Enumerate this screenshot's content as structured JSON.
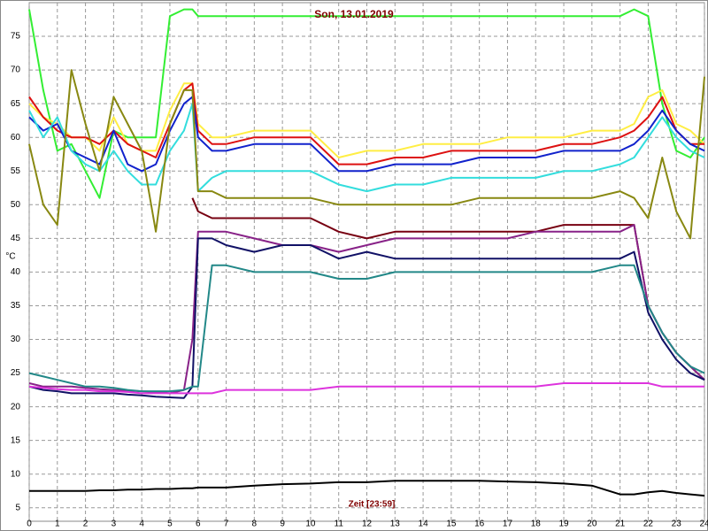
{
  "chart_data": {
    "type": "line",
    "title": "Son, 13.01.2019",
    "y_label": "°C",
    "x_label": "Zeit [23:59]",
    "x": [
      0,
      0.5,
      1,
      1.5,
      2,
      2.5,
      3,
      3.5,
      4,
      4.5,
      5,
      5.5,
      5.8,
      6,
      6.5,
      7,
      8,
      9,
      10,
      11,
      12,
      13,
      14,
      15,
      16,
      17,
      18,
      19,
      20,
      21,
      21.5,
      22,
      22.5,
      23,
      23.5,
      24
    ],
    "xlim": [
      0,
      24
    ],
    "xticks": [
      0,
      1,
      2,
      3,
      4,
      5,
      6,
      7,
      8,
      9,
      10,
      11,
      12,
      13,
      14,
      15,
      16,
      17,
      18,
      19,
      20,
      21,
      22,
      23,
      24
    ],
    "ylim": [
      3,
      80
    ],
    "yticks": [
      5,
      10,
      15,
      20,
      25,
      30,
      35,
      40,
      45,
      50,
      55,
      60,
      65,
      70,
      75
    ],
    "grid": true,
    "series": [
      {
        "color": "#33ee33",
        "values": [
          79,
          67,
          58,
          59,
          55,
          51,
          61,
          60,
          60,
          60,
          78,
          79,
          79,
          78,
          78,
          78,
          78,
          78,
          78,
          78,
          78,
          78,
          78,
          78,
          78,
          78,
          78,
          78,
          78,
          78,
          79,
          78,
          65,
          58,
          57,
          60
        ]
      },
      {
        "color": "#ffee44",
        "values": [
          65,
          63,
          62,
          60,
          60,
          58,
          63,
          59,
          58,
          58,
          64,
          68,
          68,
          62,
          60,
          60,
          61,
          61,
          61,
          57,
          58,
          58,
          59,
          59,
          59,
          60,
          60,
          60,
          61,
          61,
          62,
          66,
          67,
          62,
          61,
          59
        ]
      },
      {
        "color": "#dd1111",
        "values": [
          66,
          63,
          61,
          60,
          60,
          59,
          61,
          59,
          58,
          57,
          62,
          67,
          68,
          61,
          59,
          59,
          60,
          60,
          60,
          56,
          56,
          57,
          57,
          58,
          58,
          58,
          58,
          59,
          59,
          60,
          61,
          63,
          66,
          61,
          59,
          59
        ]
      },
      {
        "color": "#1122cc",
        "values": [
          63,
          61,
          62,
          58,
          57,
          56,
          61,
          56,
          55,
          56,
          61,
          65,
          66,
          60,
          58,
          58,
          59,
          59,
          59,
          55,
          55,
          56,
          56,
          56,
          57,
          57,
          57,
          58,
          58,
          58,
          59,
          61,
          64,
          61,
          59,
          58
        ]
      },
      {
        "color": "#33dddd",
        "values": [
          64,
          60,
          63,
          58,
          56,
          55,
          58,
          55,
          53,
          53,
          58,
          61,
          65,
          52,
          54,
          55,
          55,
          55,
          55,
          53,
          52,
          53,
          53,
          54,
          54,
          54,
          54,
          55,
          55,
          56,
          57,
          60,
          63,
          60,
          58,
          57
        ]
      },
      {
        "color": "#888811",
        "values": [
          59,
          50,
          47,
          70,
          62,
          55,
          66,
          62,
          58,
          46,
          62,
          67,
          67,
          52,
          52,
          51,
          51,
          51,
          51,
          50,
          50,
          50,
          50,
          50,
          51,
          51,
          51,
          51,
          51,
          52,
          51,
          48,
          57,
          49,
          45,
          69
        ]
      },
      {
        "color": "#770011",
        "values": [
          null,
          null,
          null,
          null,
          null,
          null,
          null,
          null,
          null,
          null,
          null,
          null,
          51,
          49,
          48,
          48,
          48,
          48,
          48,
          46,
          45,
          46,
          46,
          46,
          46,
          46,
          46,
          47,
          47,
          47,
          47,
          35,
          31,
          28,
          26,
          24
        ]
      },
      {
        "color": "#882288",
        "values": [
          23.5,
          23,
          23,
          23,
          22.8,
          22.6,
          22.5,
          22.4,
          22.3,
          22.2,
          22,
          22.5,
          30,
          46,
          46,
          46,
          45,
          44,
          44,
          43,
          44,
          45,
          45,
          45,
          45,
          45,
          46,
          46,
          46,
          46,
          47,
          35,
          31,
          28,
          26,
          24
        ]
      },
      {
        "color": "#111166",
        "values": [
          23,
          22.5,
          22.3,
          22,
          22,
          22,
          22,
          21.8,
          21.7,
          21.5,
          21.4,
          21.3,
          23,
          45,
          45,
          44,
          43,
          44,
          44,
          42,
          43,
          42,
          42,
          42,
          42,
          42,
          42,
          42,
          42,
          42,
          43,
          34,
          30,
          27,
          25,
          24
        ]
      },
      {
        "color": "#228888",
        "values": [
          25,
          24.5,
          24,
          23.5,
          23,
          23,
          22.8,
          22.5,
          22.3,
          22.3,
          22.3,
          22.5,
          23,
          23,
          41,
          41,
          40,
          40,
          40,
          39,
          39,
          40,
          40,
          40,
          40,
          40,
          40,
          40,
          40,
          41,
          41,
          35,
          31,
          28,
          26,
          25
        ]
      },
      {
        "color": "#dd33dd",
        "values": [
          23,
          22.8,
          22.6,
          22.5,
          22.5,
          22.3,
          22.3,
          22.2,
          22,
          22,
          22,
          22,
          22,
          22,
          22,
          22.5,
          22.5,
          22.5,
          22.5,
          23,
          23,
          23,
          23,
          23,
          23,
          23,
          23,
          23.5,
          23.5,
          23.5,
          23.5,
          23.5,
          23,
          23,
          23,
          23
        ]
      },
      {
        "color": "#000000",
        "values": [
          7.5,
          7.5,
          7.5,
          7.5,
          7.5,
          7.6,
          7.6,
          7.7,
          7.7,
          7.8,
          7.8,
          7.9,
          7.9,
          8,
          8,
          8,
          8.3,
          8.5,
          8.6,
          8.8,
          8.8,
          9,
          9,
          9,
          9,
          8.9,
          8.8,
          8.6,
          8.3,
          7,
          7,
          7.3,
          7.5,
          7.2,
          7,
          6.8
        ]
      }
    ]
  }
}
